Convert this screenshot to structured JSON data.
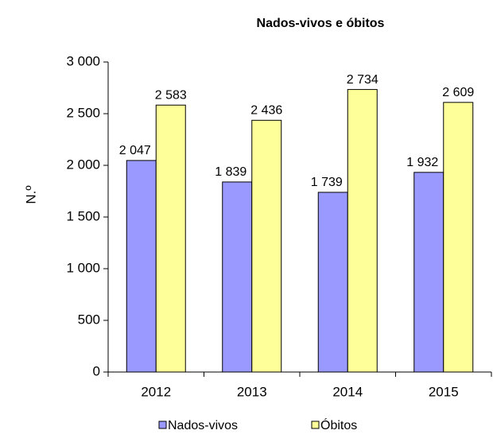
{
  "chart_data": {
    "type": "bar",
    "title": "Nados-vivos e óbitos",
    "y_label": "N.º",
    "categories": [
      "2012",
      "2013",
      "2014",
      "2015"
    ],
    "series": [
      {
        "name": "Nados-vivos",
        "color": "#9999ff",
        "values": [
          2047,
          1839,
          1739,
          1932
        ],
        "value_labels": [
          "2 047",
          "1 839",
          "1 739",
          "1 932"
        ]
      },
      {
        "name": "Óbitos",
        "color": "#ffff99",
        "values": [
          2583,
          2436,
          2734,
          2609
        ],
        "value_labels": [
          "2 583",
          "2 436",
          "2 734",
          "2 609"
        ]
      }
    ],
    "ylim": [
      0,
      3000
    ],
    "yticks": [
      0,
      500,
      {
        "value": 1000,
        "label": "1 000"
      },
      {
        "value": 1500,
        "label": "1 500"
      },
      {
        "value": 2000,
        "label": "2 000"
      },
      {
        "value": 2500,
        "label": "2 500"
      },
      {
        "value": 3000,
        "label": "3 000"
      }
    ],
    "grid": false,
    "legend": "bottom"
  }
}
